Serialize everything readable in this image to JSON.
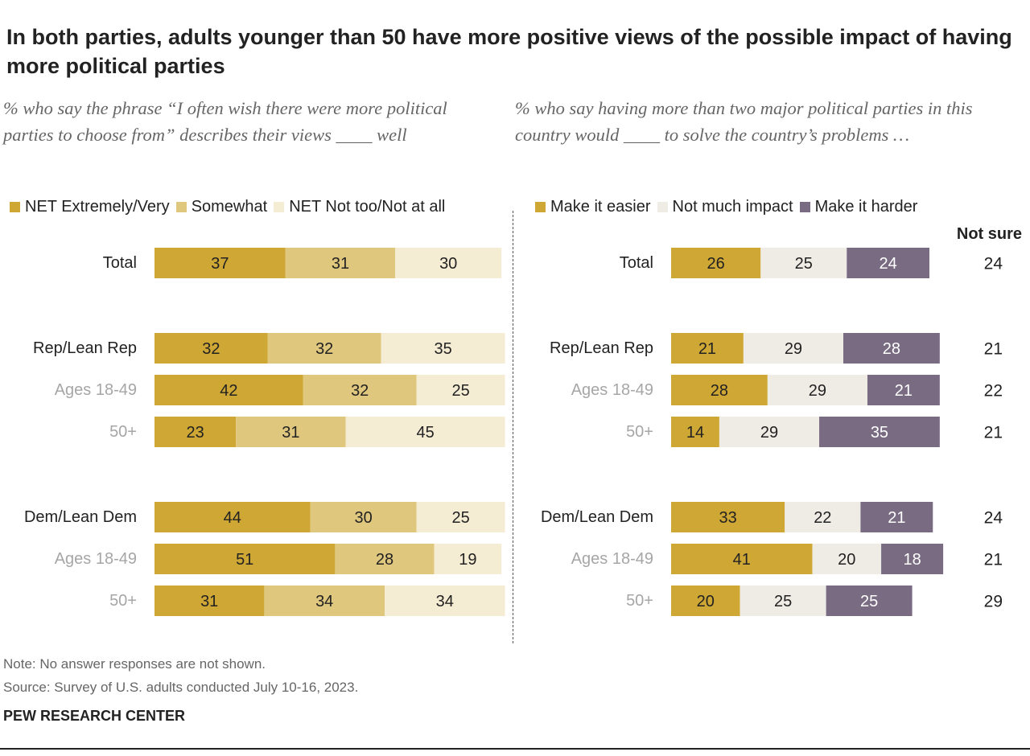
{
  "title": "In both parties, adults younger than 50 have more positive views of the possible impact of having more political parties",
  "left_subtitle": "% who say the phrase “I often wish there were more political parties to choose from” describes their views ____ well",
  "right_subtitle": "% who say having more than two major political parties in this country would ____ to solve the country’s problems …",
  "not_sure_header": "Not sure",
  "note": "Note: No answer responses are not shown.",
  "source": "Source: Survey of U.S. adults conducted July 10-16, 2023.",
  "brand": "PEW RESEARCH CENTER",
  "colors": {
    "gold": "#cfa734",
    "tan": "#e0c77e",
    "cream": "#f5ecd4",
    "light_gray": "#efece6",
    "purple": "#786b82",
    "label_gray": "#a6a6a6"
  },
  "chart_data": [
    {
      "type": "bar",
      "orientation": "horizontal",
      "stacked": true,
      "categories": [
        "Total",
        "Rep/Lean Rep",
        "Ages 18-49",
        "50+",
        "Dem/Lean Dem",
        "Ages 18-49",
        "50+"
      ],
      "series": [
        {
          "name": "NET Extremely/Very",
          "color": "#cfa734",
          "values": [
            37,
            32,
            42,
            23,
            44,
            51,
            31
          ]
        },
        {
          "name": "Somewhat",
          "color": "#e0c77e",
          "values": [
            31,
            32,
            32,
            31,
            30,
            28,
            34
          ]
        },
        {
          "name": "NET Not too/Not at all",
          "color": "#f5ecd4",
          "values": [
            30,
            35,
            25,
            45,
            25,
            19,
            34
          ]
        }
      ],
      "legend": "top"
    },
    {
      "type": "bar",
      "orientation": "horizontal",
      "stacked": true,
      "categories": [
        "Total",
        "Rep/Lean Rep",
        "Ages 18-49",
        "50+",
        "Dem/Lean Dem",
        "Ages 18-49",
        "50+"
      ],
      "series": [
        {
          "name": "Make it easier",
          "color": "#cfa734",
          "values": [
            26,
            21,
            28,
            14,
            33,
            41,
            20
          ]
        },
        {
          "name": "Not much impact",
          "color": "#efece6",
          "values": [
            25,
            29,
            29,
            29,
            22,
            20,
            25
          ]
        },
        {
          "name": "Make it harder",
          "color": "#786b82",
          "values": [
            24,
            28,
            21,
            35,
            21,
            18,
            25
          ]
        }
      ],
      "extra_column": {
        "name": "Not sure",
        "values": [
          24,
          21,
          22,
          21,
          24,
          21,
          29
        ]
      },
      "legend": "top"
    }
  ]
}
